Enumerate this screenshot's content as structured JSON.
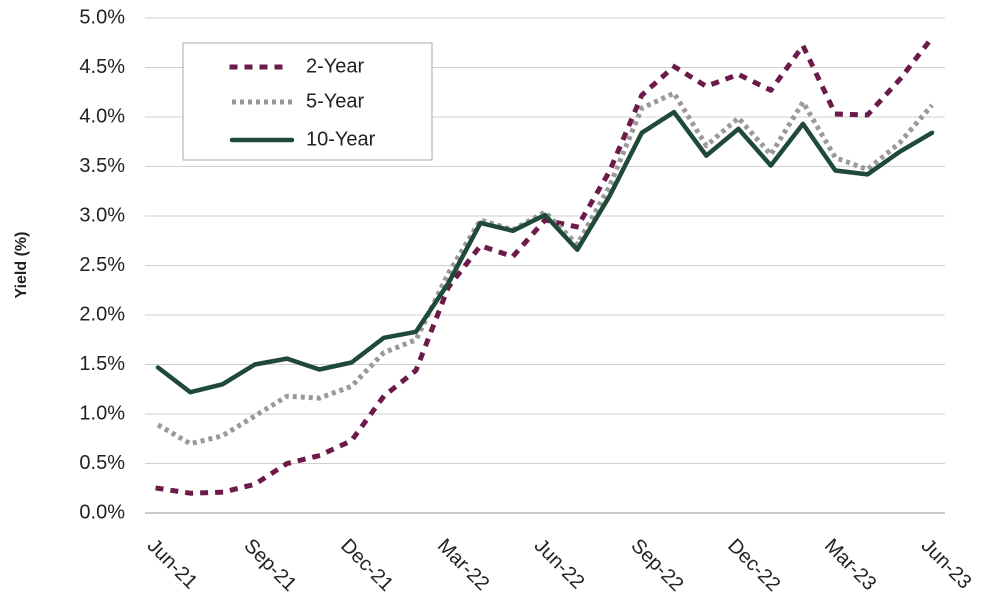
{
  "chart_data": {
    "type": "line",
    "y_label": "Yield (%)",
    "categories": [
      "Jun-21",
      null,
      null,
      "Sep-21",
      null,
      null,
      "Dec-21",
      null,
      null,
      "Mar-22",
      null,
      null,
      "Jun-22",
      null,
      null,
      "Sep-22",
      null,
      null,
      "Dec-22",
      null,
      null,
      "Mar-23",
      null,
      null,
      "Jun-23"
    ],
    "series": [
      {
        "name": "2-Year",
        "color": "#6b1a4a",
        "line_style": "dotted",
        "values": [
          0.25,
          0.2,
          0.21,
          0.29,
          0.5,
          0.58,
          0.73,
          1.18,
          1.44,
          2.28,
          2.7,
          2.59,
          2.96,
          2.89,
          3.45,
          4.22,
          4.51,
          4.31,
          4.43,
          4.27,
          4.72,
          4.03,
          4.02,
          4.38,
          4.8
        ]
      },
      {
        "name": "5-Year",
        "color": "#999999",
        "line_style": "square-dotted",
        "values": [
          0.89,
          0.7,
          0.78,
          0.98,
          1.18,
          1.16,
          1.28,
          1.62,
          1.75,
          2.42,
          2.96,
          2.86,
          3.04,
          2.71,
          3.3,
          4.09,
          4.24,
          3.71,
          3.99,
          3.62,
          4.15,
          3.59,
          3.47,
          3.74,
          4.12
        ]
      },
      {
        "name": "10-Year",
        "color": "#1f4a38",
        "line_style": "solid",
        "values": [
          1.47,
          1.22,
          1.3,
          1.5,
          1.56,
          1.45,
          1.52,
          1.77,
          1.83,
          2.32,
          2.93,
          2.85,
          3.01,
          2.66,
          3.2,
          3.84,
          4.05,
          3.61,
          3.88,
          3.51,
          3.93,
          3.46,
          3.42,
          3.65,
          3.84
        ]
      }
    ],
    "ylim": [
      0,
      5
    ],
    "yticks": [
      {
        "value": 0,
        "label": "0.0%"
      },
      {
        "value": 0.5,
        "label": "0.5%"
      },
      {
        "value": 1,
        "label": "1.0%"
      },
      {
        "value": 1.5,
        "label": "1.5%"
      },
      {
        "value": 2,
        "label": "2.0%"
      },
      {
        "value": 2.5,
        "label": "2.5%"
      },
      {
        "value": 3,
        "label": "3.0%"
      },
      {
        "value": 3.5,
        "label": "3.5%"
      },
      {
        "value": 4,
        "label": "4.0%"
      },
      {
        "value": 4.5,
        "label": "4.5%"
      },
      {
        "value": 5,
        "label": "5.0%"
      }
    ],
    "grid": true,
    "legend": "upper-left"
  }
}
